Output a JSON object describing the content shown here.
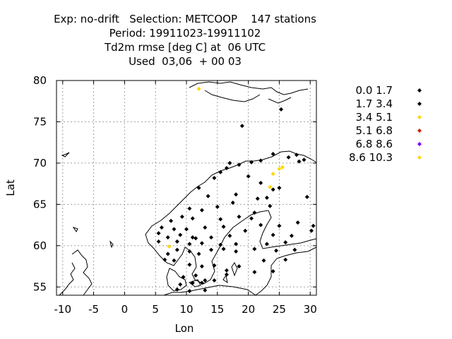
{
  "chart_data": {
    "type": "scatter",
    "title_lines": [
      "Exp: no-drift   Selection: METCOOP    147 stations",
      "Period: 19911023-19911102",
      "Td2m rmse [deg C] at  06 UTC",
      "Used  03,06  + 00 03"
    ],
    "xlabel": "Lon",
    "ylabel": "Lat",
    "xlim": [
      -11,
      31
    ],
    "ylim": [
      54,
      80
    ],
    "xticks": [
      -10,
      -5,
      0,
      5,
      10,
      15,
      20,
      25,
      30
    ],
    "yticks": [
      55,
      60,
      65,
      70,
      75,
      80
    ],
    "grid": true,
    "legend_position": "right",
    "series": [
      {
        "name": "0.0 1.7",
        "color": "#000000",
        "points": [
          [
            25.3,
            76.5
          ],
          [
            19,
            74.5
          ],
          [
            24,
            71.1
          ],
          [
            27.8,
            71
          ],
          [
            26.5,
            70.7
          ],
          [
            29,
            70.4
          ],
          [
            22,
            70.3
          ],
          [
            20.5,
            70.1
          ],
          [
            28.2,
            70.2
          ],
          [
            18.5,
            69.8
          ],
          [
            16.5,
            69.4
          ],
          [
            15.5,
            68.9
          ],
          [
            14.5,
            68.2
          ],
          [
            20,
            68.4
          ],
          [
            22,
            67.6
          ],
          [
            25,
            67
          ],
          [
            12,
            67
          ],
          [
            13.5,
            66
          ],
          [
            18,
            66.2
          ],
          [
            21.5,
            65.7
          ],
          [
            23.5,
            64.8
          ],
          [
            29.5,
            65.9
          ],
          [
            10.5,
            64.5
          ],
          [
            12.5,
            64.3
          ],
          [
            15,
            64.7
          ],
          [
            17.5,
            65.2
          ],
          [
            7.5,
            63
          ],
          [
            9.3,
            63.5
          ],
          [
            11,
            63.3
          ],
          [
            15.5,
            63.2
          ],
          [
            18.5,
            63.5
          ],
          [
            20.5,
            63.3
          ],
          [
            6,
            62.2
          ],
          [
            8,
            62
          ],
          [
            10,
            62
          ],
          [
            13,
            62.2
          ],
          [
            16,
            62.3
          ],
          [
            22,
            62.5
          ],
          [
            25,
            62.4
          ],
          [
            28,
            62.8
          ],
          [
            30.5,
            62.4
          ],
          [
            5.5,
            61.5
          ],
          [
            7,
            61
          ],
          [
            9,
            61.3
          ],
          [
            11,
            61
          ],
          [
            14,
            61
          ],
          [
            17,
            61.2
          ],
          [
            24,
            61.3
          ],
          [
            27,
            61.2
          ],
          [
            5.5,
            60.5
          ],
          [
            8.5,
            60.5
          ],
          [
            10.5,
            60.2
          ],
          [
            12.5,
            60.3
          ],
          [
            15.5,
            60.1
          ],
          [
            18,
            60.2
          ],
          [
            23,
            60.2
          ],
          [
            26,
            60.4
          ],
          [
            7,
            59
          ],
          [
            8.5,
            59.5
          ],
          [
            10.5,
            59.3
          ],
          [
            12,
            59
          ],
          [
            14,
            59.5
          ],
          [
            16,
            59.6
          ],
          [
            18,
            59.3
          ],
          [
            21,
            59.6
          ],
          [
            24.5,
            59.4
          ],
          [
            27.5,
            59.5
          ],
          [
            6.5,
            58.3
          ],
          [
            8,
            58.2
          ],
          [
            10.5,
            57.7
          ],
          [
            12.5,
            57.5
          ],
          [
            14.5,
            57.6
          ],
          [
            16.5,
            57
          ],
          [
            18.5,
            57.5
          ],
          [
            22.5,
            58.2
          ],
          [
            26,
            58.3
          ],
          [
            9.5,
            56.2
          ],
          [
            11.5,
            56.4
          ],
          [
            13,
            55.8
          ],
          [
            14.5,
            55.8
          ],
          [
            16.5,
            56.5
          ],
          [
            21,
            56.8
          ],
          [
            24,
            56.9
          ],
          [
            9,
            55.3
          ],
          [
            11,
            55.5
          ],
          [
            12.5,
            55.5
          ],
          [
            8.5,
            54.7
          ],
          [
            10.5,
            54.5
          ],
          [
            13,
            54.6
          ],
          [
            17,
            70
          ],
          [
            23,
            65.8
          ],
          [
            24,
            66.8
          ]
        ]
      },
      {
        "name": "1.7 3.4",
        "color": "#000000",
        "points": [
          [
            30.2,
            61.8
          ],
          [
            21,
            64
          ],
          [
            11.5,
            60.9
          ],
          [
            19.5,
            61.8
          ]
        ]
      },
      {
        "name": "3.4 5.1",
        "color": "#ffd700",
        "points": [
          [
            12,
            79
          ],
          [
            25.5,
            69.5
          ],
          [
            23.5,
            67.1
          ],
          [
            24,
            68.7
          ],
          [
            25,
            69.3
          ],
          [
            7.2,
            59.9
          ]
        ]
      },
      {
        "name": "5.1 6.8",
        "color": "#cc2200",
        "points": []
      },
      {
        "name": "6.8 8.6",
        "color": "#7f00ff",
        "points": []
      },
      {
        "name": "8.6 10.3",
        "color": "#ffd700",
        "points": []
      }
    ]
  }
}
